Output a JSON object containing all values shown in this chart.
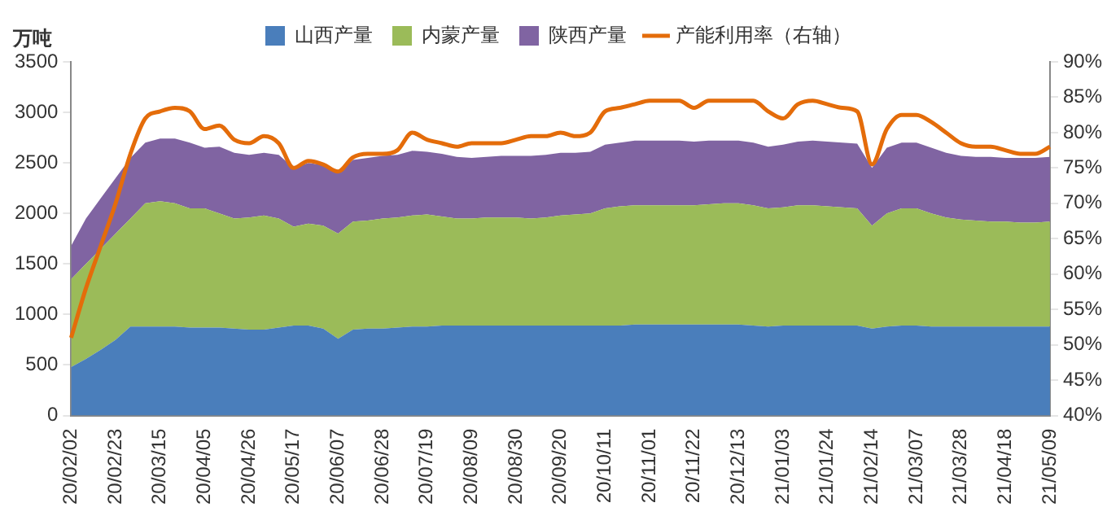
{
  "chart_data": {
    "type": "area",
    "stacked": true,
    "ylabel": "万吨",
    "categories": [
      "20/02/02",
      null,
      null,
      "20/02/23",
      null,
      null,
      "20/03/15",
      null,
      null,
      "20/04/05",
      null,
      null,
      "20/04/26",
      null,
      null,
      "20/05/17",
      null,
      null,
      "20/06/07",
      null,
      null,
      "20/06/28",
      null,
      null,
      "20/07/19",
      null,
      null,
      "20/08/09",
      null,
      null,
      "20/08/30",
      null,
      null,
      "20/09/20",
      null,
      null,
      "20/10/11",
      null,
      null,
      "20/11/01",
      null,
      null,
      "20/11/22",
      null,
      null,
      "20/12/13",
      null,
      null,
      "21/01/03",
      null,
      null,
      "21/01/24",
      null,
      null,
      "21/02/14",
      null,
      null,
      "21/03/07",
      null,
      null,
      "21/03/28",
      null,
      null,
      "21/04/18",
      null,
      null,
      "21/05/09"
    ],
    "series": [
      {
        "name": "山西产量",
        "color": "#4a7ebb",
        "values": [
          480,
          560,
          650,
          750,
          880,
          880,
          880,
          880,
          870,
          870,
          870,
          860,
          850,
          850,
          870,
          890,
          890,
          860,
          760,
          850,
          860,
          860,
          870,
          880,
          880,
          890,
          890,
          890,
          890,
          890,
          890,
          890,
          890,
          890,
          890,
          890,
          890,
          890,
          900,
          900,
          900,
          900,
          900,
          900,
          900,
          900,
          890,
          880,
          890,
          890,
          890,
          890,
          890,
          890,
          860,
          880,
          890,
          890,
          880,
          880,
          880,
          880,
          880,
          880,
          880,
          880,
          880
        ]
      },
      {
        "name": "内蒙产量",
        "color": "#9bbb59",
        "values": [
          870,
          940,
          1000,
          1050,
          1070,
          1220,
          1240,
          1220,
          1180,
          1180,
          1130,
          1090,
          1110,
          1130,
          1080,
          980,
          1010,
          1020,
          1040,
          1070,
          1070,
          1090,
          1090,
          1100,
          1110,
          1080,
          1060,
          1060,
          1070,
          1070,
          1070,
          1060,
          1070,
          1090,
          1100,
          1110,
          1160,
          1180,
          1180,
          1180,
          1180,
          1180,
          1180,
          1190,
          1200,
          1200,
          1190,
          1170,
          1170,
          1190,
          1190,
          1180,
          1170,
          1160,
          1020,
          1120,
          1160,
          1160,
          1120,
          1080,
          1060,
          1050,
          1040,
          1040,
          1030,
          1030,
          1040
        ]
      },
      {
        "name": "陕西产量",
        "color": "#8064a2",
        "values": [
          330,
          450,
          500,
          550,
          600,
          600,
          620,
          640,
          650,
          600,
          660,
          650,
          620,
          620,
          630,
          580,
          600,
          600,
          600,
          610,
          620,
          620,
          620,
          640,
          620,
          620,
          610,
          600,
          600,
          610,
          610,
          620,
          620,
          620,
          610,
          610,
          630,
          630,
          640,
          640,
          640,
          640,
          630,
          630,
          620,
          620,
          620,
          610,
          620,
          630,
          640,
          640,
          640,
          640,
          570,
          650,
          650,
          650,
          650,
          640,
          630,
          630,
          640,
          630,
          640,
          640,
          640
        ]
      },
      {
        "name": "产能利用率（右轴）",
        "type": "line",
        "axis": "y2",
        "color": "#e46c0a",
        "values": [
          51,
          58,
          64,
          70,
          77,
          82,
          83,
          83.5,
          83,
          80.5,
          81,
          79,
          78.5,
          79.5,
          78.5,
          75,
          76,
          75.5,
          74.5,
          76.5,
          77,
          77,
          77.5,
          80,
          79,
          78.5,
          78,
          78.5,
          78.5,
          78.5,
          79,
          79.5,
          79.5,
          80,
          79.5,
          80,
          83,
          83.5,
          84,
          84.5,
          84.5,
          84.5,
          83.5,
          84.5,
          84.5,
          84.5,
          84.5,
          83,
          82,
          84,
          84.5,
          84,
          83.5,
          83,
          75.5,
          80.5,
          82.5,
          82.5,
          81.5,
          80,
          78.5,
          78,
          78,
          77.5,
          77,
          77,
          78
        ]
      }
    ],
    "ylim": [
      0,
      3500
    ],
    "yticks": [
      0,
      500,
      1000,
      1500,
      2000,
      2500,
      3000,
      3500
    ],
    "y2lim": [
      40,
      90
    ],
    "y2ticks": [
      {
        "value": 40,
        "label": "40%"
      },
      {
        "value": 45,
        "label": "45%"
      },
      {
        "value": 50,
        "label": "50%"
      },
      {
        "value": 55,
        "label": "55%"
      },
      {
        "value": 60,
        "label": "60%"
      },
      {
        "value": 65,
        "label": "65%"
      },
      {
        "value": 70,
        "label": "70%"
      },
      {
        "value": 75,
        "label": "75%"
      },
      {
        "value": 80,
        "label": "80%"
      },
      {
        "value": 85,
        "label": "85%"
      },
      {
        "value": 90,
        "label": "90%"
      }
    ],
    "legend": "top",
    "grid": false,
    "marker": "none",
    "line_style": "solid"
  }
}
